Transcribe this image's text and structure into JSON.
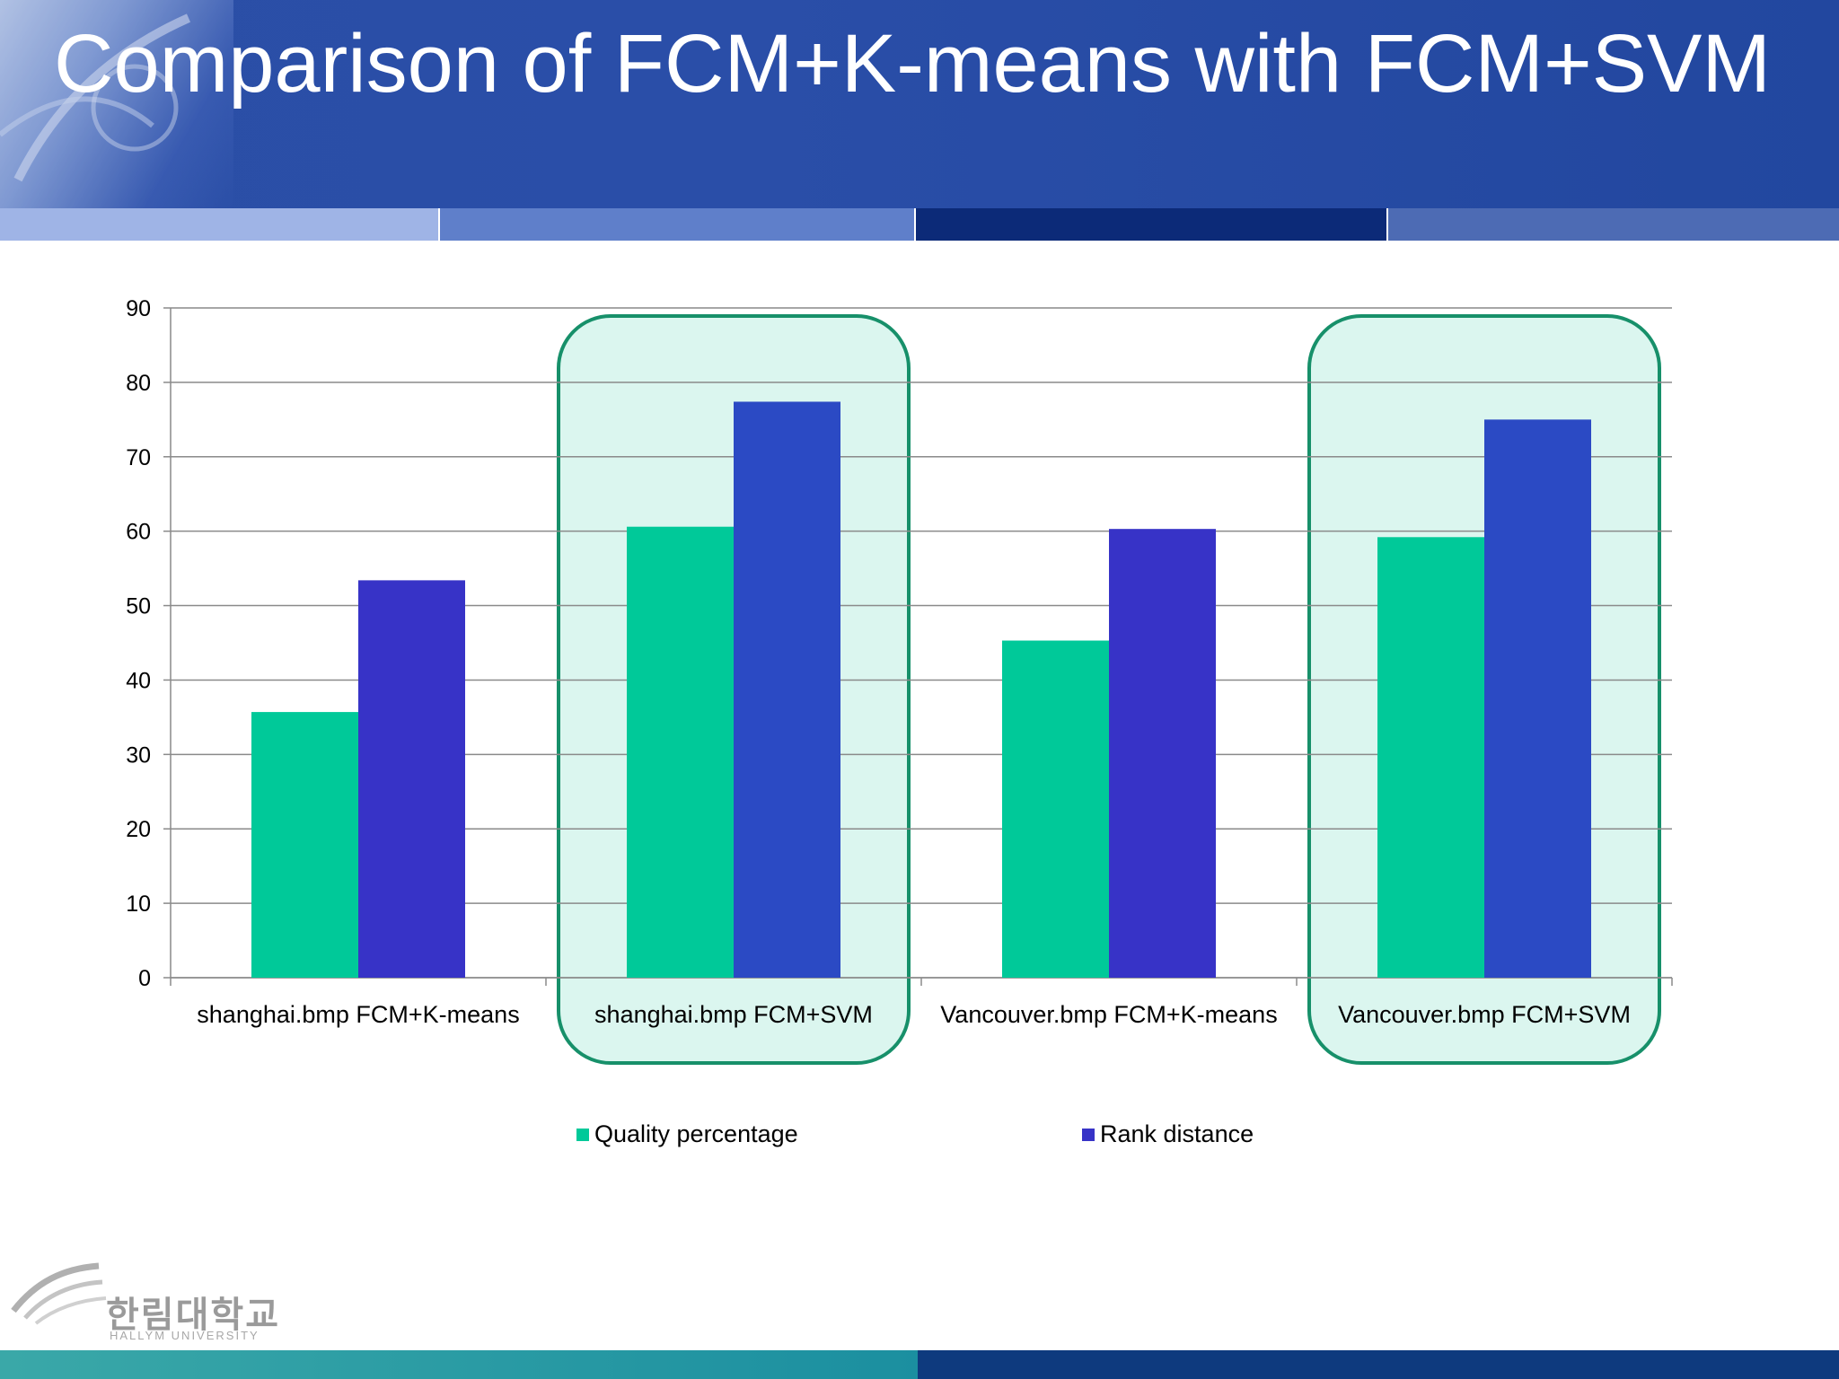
{
  "slide": {
    "title": "Comparison of FCM+K-means with FCM+SVM",
    "logo_kr": "한림대학교",
    "logo_en": "HALLYM UNIVERSITY"
  },
  "colors": {
    "quality": "#00c999",
    "rank_kmeans": "#3733c7",
    "rank_svm": "#2b4ac4",
    "highlight_fill": "#dbf6ef",
    "highlight_stroke": "#17906a"
  },
  "chart_data": {
    "type": "bar",
    "title": "",
    "xlabel": "",
    "ylabel": "",
    "ylim": [
      0,
      90
    ],
    "yticks": [
      0,
      10,
      20,
      30,
      40,
      50,
      60,
      70,
      80,
      90
    ],
    "categories": [
      "shanghai.bmp FCM+K-means",
      "shanghai.bmp FCM+SVM",
      "Vancouver.bmp FCM+K-means",
      "Vancouver.bmp FCM+SVM"
    ],
    "series": [
      {
        "name": "Quality percentage",
        "values": [
          35.7,
          60.6,
          45.3,
          59.2
        ]
      },
      {
        "name": "Rank distance",
        "values": [
          53.4,
          77.4,
          60.3,
          75.0
        ]
      }
    ],
    "highlighted_categories": [
      1,
      3
    ],
    "grid": true,
    "legend": "bottom"
  }
}
